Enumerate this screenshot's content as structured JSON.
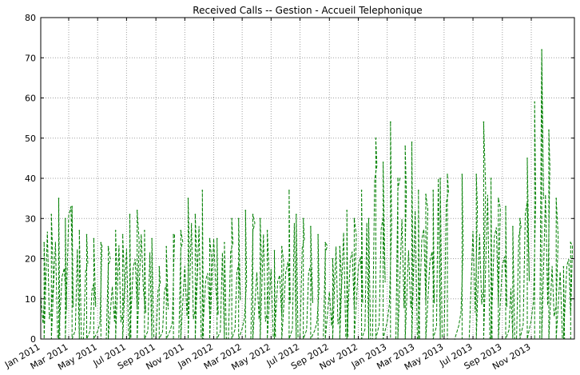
{
  "chart_data": {
    "type": "line",
    "title": "Received Calls -- Gestion - Accueil Telephonique",
    "xlabel": "",
    "ylabel": "",
    "ylim": [
      0,
      80
    ],
    "xlim": [
      "2011-01-01",
      "2014-01-31"
    ],
    "yticks": [
      0,
      10,
      20,
      30,
      40,
      50,
      60,
      70,
      80
    ],
    "xticks": [
      {
        "date": "2011-01-01",
        "label": "Jan 2011"
      },
      {
        "date": "2011-03-01",
        "label": "Mar 2011"
      },
      {
        "date": "2011-05-01",
        "label": "May 2011"
      },
      {
        "date": "2011-07-01",
        "label": "Jul 2011"
      },
      {
        "date": "2011-09-01",
        "label": "Sep 2011"
      },
      {
        "date": "2011-11-01",
        "label": "Nov 2011"
      },
      {
        "date": "2012-01-01",
        "label": "Jan 2012"
      },
      {
        "date": "2012-03-01",
        "label": "Mar 2012"
      },
      {
        "date": "2012-05-01",
        "label": "May 2012"
      },
      {
        "date": "2012-07-01",
        "label": "Jul 2012"
      },
      {
        "date": "2012-09-01",
        "label": "Sep 2012"
      },
      {
        "date": "2012-11-01",
        "label": "Nov 2012"
      },
      {
        "date": "2013-01-01",
        "label": "Jan 2013"
      },
      {
        "date": "2013-03-01",
        "label": "Mar 2013"
      },
      {
        "date": "2013-05-01",
        "label": "May 2013"
      },
      {
        "date": "2013-07-01",
        "label": "Jul 2013"
      },
      {
        "date": "2013-09-01",
        "label": "Sep 2013"
      },
      {
        "date": "2013-11-01",
        "label": "Nov 2013"
      }
    ],
    "grid": true,
    "line_style": "dashed",
    "series_color": "#007f00",
    "series": [
      {
        "x": [
          "2011-01-01",
          "2011-01-15",
          "2011-02-01",
          "2011-02-15",
          "2011-03-01",
          "2011-03-15",
          "2011-04-01",
          "2011-04-15",
          "2011-05-01",
          "2011-05-15",
          "2011-06-01",
          "2011-06-15",
          "2011-07-01",
          "2011-07-15",
          "2011-08-01",
          "2011-08-15",
          "2011-09-01",
          "2011-09-15",
          "2011-10-01",
          "2011-10-15",
          "2011-11-01",
          "2011-11-15",
          "2011-12-01",
          "2011-12-15",
          "2012-01-01",
          "2012-01-15",
          "2012-02-01",
          "2012-02-15",
          "2012-03-01",
          "2012-03-15",
          "2012-04-01",
          "2012-04-15",
          "2012-05-01",
          "2012-05-15",
          "2012-06-01",
          "2012-06-15",
          "2012-07-01",
          "2012-07-15",
          "2012-08-01",
          "2012-08-15",
          "2012-09-01",
          "2012-09-15",
          "2012-10-01",
          "2012-10-15",
          "2012-11-01",
          "2012-11-15",
          "2012-12-01",
          "2012-12-15",
          "2013-01-01",
          "2013-01-15",
          "2013-02-01",
          "2013-02-15",
          "2013-03-01",
          "2013-03-15",
          "2013-04-01",
          "2013-04-15",
          "2013-05-01",
          "2013-05-15",
          "2013-06-01",
          "2013-06-15",
          "2013-07-01",
          "2013-07-15",
          "2013-08-01",
          "2013-08-15",
          "2013-09-01",
          "2013-09-15",
          "2013-10-01",
          "2013-10-15",
          "2013-11-01",
          "2013-11-15",
          "2013-12-01",
          "2013-12-15",
          "2014-01-01",
          "2014-01-15"
        ],
        "y": [
          24,
          31,
          35,
          30,
          33,
          27,
          26,
          25,
          24,
          23,
          27,
          26,
          31,
          32,
          27,
          25,
          18,
          23,
          26,
          27,
          35,
          31,
          37,
          25,
          25,
          24,
          30,
          30,
          32,
          31,
          30,
          27,
          22,
          23,
          37,
          31,
          30,
          28,
          26,
          24,
          20,
          23,
          32,
          30,
          37,
          30,
          50,
          44,
          54,
          40,
          48,
          49,
          37,
          36,
          37,
          40,
          41,
          0,
          41,
          0,
          41,
          54,
          40,
          35,
          33,
          28,
          30,
          45,
          59,
          72,
          52,
          35,
          18,
          24
        ]
      }
    ]
  }
}
